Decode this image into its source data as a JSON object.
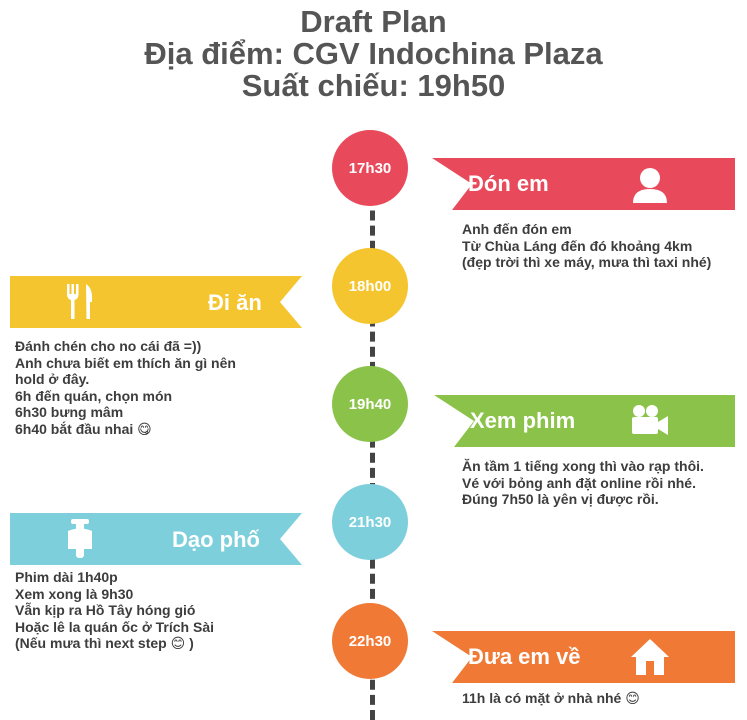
{
  "header": {
    "line1": "Draft Plan",
    "line2": "Địa điểm: CGV Indochina Plaza",
    "line3": "Suất chiếu: 19h50"
  },
  "colors": {
    "red": "#e84a5c",
    "yellow": "#f4c52e",
    "green": "#8bc34a",
    "cyan": "#7dcfdb",
    "orange": "#f07a35",
    "line": "#444444"
  },
  "events": [
    {
      "time": "17h30",
      "title": "Đón em",
      "icon": "person-icon",
      "lines": [
        "Anh đến đón em",
        "Từ Chùa Láng đến đó khoảng 4km",
        "(đẹp trời thì xe máy, mưa thì taxi nhé)"
      ]
    },
    {
      "time": "18h00",
      "title": "Đi ăn",
      "icon": "fork-knife-icon",
      "lines": [
        "Đánh chén cho no cái đã =))",
        "Anh chưa biết em thích ăn gì nên",
        "hold ở đây.",
        "6h đến quán, chọn món",
        "6h30 bưng mâm",
        "6h40 bắt đầu nhai 😋"
      ]
    },
    {
      "time": "19h40",
      "title": "Xem phim",
      "icon": "video-camera-icon",
      "lines": [
        "Ăn tầm 1 tiếng xong thì vào rạp thôi.",
        "Vé với bỏng anh đặt online rồi nhé.",
        "Đúng 7h50 là yên vị được rồi."
      ]
    },
    {
      "time": "21h30",
      "title": "Dạo phố",
      "icon": "scooter-icon",
      "lines": [
        "Phim dài 1h40p",
        "Xem xong là 9h30",
        "Vẫn kịp ra Hồ Tây hóng gió",
        "Hoặc lê la quán ốc ở Trích Sài",
        "(Nếu mưa thì next step 😊 )"
      ]
    },
    {
      "time": "22h30",
      "title": "Đưa em về",
      "icon": "home-icon",
      "lines": [
        "11h là có mặt ở nhà nhé 😊"
      ]
    }
  ]
}
